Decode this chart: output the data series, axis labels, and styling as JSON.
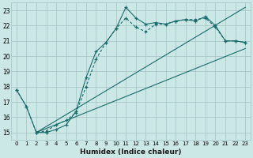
{
  "xlabel": "Humidex (Indice chaleur)",
  "background_color": "#cce8e6",
  "grid_color": "#a0c4c2",
  "line_color": "#1a6b6b",
  "xlim": [
    -0.5,
    23.5
  ],
  "ylim": [
    14.5,
    23.5
  ],
  "yticks": [
    15,
    16,
    17,
    18,
    19,
    20,
    21,
    22,
    23
  ],
  "xticks": [
    0,
    1,
    2,
    3,
    4,
    5,
    6,
    7,
    8,
    9,
    10,
    11,
    12,
    13,
    14,
    15,
    16,
    17,
    18,
    19,
    20,
    21,
    22,
    23
  ],
  "series1_x": [
    0,
    1,
    2,
    3,
    4,
    5,
    6,
    7,
    8,
    9,
    10,
    11,
    12,
    13,
    14,
    15,
    16,
    17,
    18,
    19,
    20,
    21,
    22,
    23
  ],
  "series1_y": [
    17.8,
    16.7,
    15.0,
    15.0,
    15.2,
    15.5,
    16.4,
    18.6,
    20.3,
    20.9,
    21.8,
    23.2,
    22.5,
    22.1,
    22.2,
    22.1,
    22.3,
    22.4,
    22.3,
    22.6,
    22.0,
    21.0,
    21.0,
    20.9
  ],
  "series2_x": [
    0,
    1,
    2,
    3,
    4,
    5,
    6,
    7,
    8,
    9,
    10,
    11,
    12,
    13,
    14,
    15,
    16,
    17,
    18,
    19,
    20,
    21,
    22,
    23
  ],
  "series2_y": [
    17.8,
    16.7,
    15.0,
    15.1,
    15.5,
    15.8,
    16.3,
    18.0,
    19.8,
    20.9,
    21.8,
    22.5,
    21.9,
    21.6,
    22.1,
    22.1,
    22.3,
    22.4,
    22.4,
    22.5,
    21.9,
    21.0,
    21.0,
    20.9
  ],
  "ref_line1_x": [
    2,
    23
  ],
  "ref_line1_y": [
    15.0,
    23.2
  ],
  "ref_line2_x": [
    2,
    23
  ],
  "ref_line2_y": [
    15.0,
    20.5
  ]
}
